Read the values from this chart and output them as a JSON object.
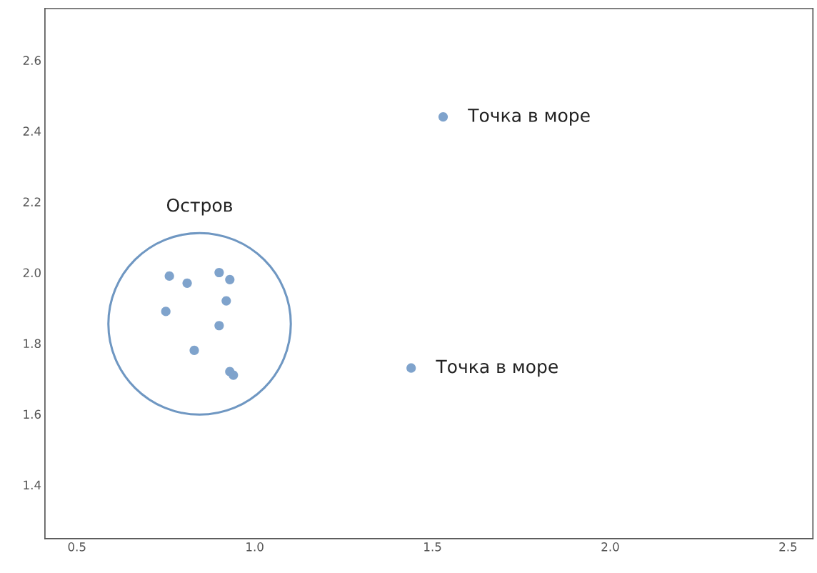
{
  "chart_data": {
    "type": "scatter",
    "x": [
      1.53,
      1.44,
      0.76,
      0.81,
      0.9,
      0.93,
      0.75,
      0.92,
      0.9,
      0.83,
      0.93,
      0.94
    ],
    "series": [
      {
        "color": "#7fa3cc",
        "values": [
          2.44,
          1.73,
          1.99,
          1.97,
          2.0,
          1.98,
          1.89,
          1.92,
          1.85,
          1.78,
          1.72,
          1.71
        ]
      }
    ],
    "xlim": [
      0.41,
      2.57
    ],
    "ylim": [
      1.248,
      2.746
    ],
    "xticks": [
      0.5,
      {
        "value": 1,
        "label": "1.0"
      },
      1.5,
      {
        "value": 2,
        "label": "2.0"
      },
      2.5
    ],
    "yticks": [
      1.4,
      1.6,
      1.8,
      {
        "value": 2,
        "label": "2.0"
      },
      2.2,
      2.4,
      2.6
    ],
    "annotations": [
      "Остров",
      {
        "text": "Точка в море",
        "x": 1.53,
        "y": 2.44
      },
      {
        "text": "Точка в море",
        "x": 1.44,
        "y": 1.73
      }
    ],
    "grid": false,
    "marker": "circle"
  }
}
